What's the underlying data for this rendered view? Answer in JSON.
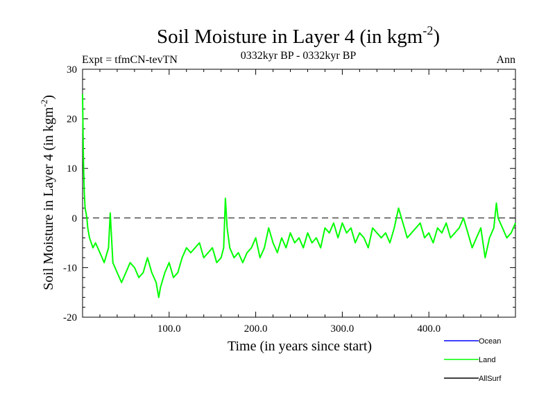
{
  "chart_data": {
    "type": "line",
    "title_main": "Soil Moisture in Layer 4 (in kgm",
    "title_sup": "-2",
    "title_close": ")",
    "subtitle_left": "Expt = tfmCN-tevTN",
    "subtitle_center": "0332kyr BP - 0332kyr BP",
    "subtitle_right": "Ann",
    "xlabel": "Time (in years since start)",
    "ylabel_main": "Soil Moisture in Layer 4 (in kgm",
    "ylabel_sup": "-2",
    "ylabel_close": ")",
    "xlim": [
      0,
      500
    ],
    "ylim": [
      -20,
      30
    ],
    "x_ticks": [
      100,
      200,
      300,
      400
    ],
    "x_tick_labels": [
      "100.0",
      "200.0",
      "300.0",
      "400.0"
    ],
    "y_ticks": [
      -20,
      -10,
      0,
      10,
      20,
      30
    ],
    "y_tick_labels": [
      "-20",
      "-10",
      "0",
      "10",
      "20",
      "30"
    ],
    "reference_line_y": 0,
    "legend": [
      {
        "name": "Ocean",
        "color": "#0000ff"
      },
      {
        "name": "Land",
        "color": "#00ff00"
      },
      {
        "name": "AllSurf",
        "color": "#000000"
      }
    ],
    "series": [
      {
        "name": "Land",
        "color": "#00ff00",
        "x": [
          0,
          1,
          2,
          3,
          4,
          5,
          6,
          8,
          10,
          12,
          15,
          20,
          25,
          30,
          32,
          35,
          40,
          45,
          50,
          55,
          60,
          65,
          70,
          75,
          80,
          85,
          88,
          90,
          95,
          100,
          105,
          110,
          115,
          120,
          125,
          130,
          135,
          140,
          145,
          150,
          155,
          160,
          163,
          165,
          167,
          170,
          175,
          180,
          185,
          190,
          195,
          200,
          205,
          210,
          215,
          220,
          225,
          230,
          235,
          240,
          245,
          250,
          255,
          260,
          265,
          270,
          275,
          280,
          285,
          290,
          295,
          300,
          305,
          310,
          315,
          320,
          325,
          330,
          335,
          340,
          345,
          350,
          355,
          360,
          365,
          370,
          375,
          380,
          385,
          390,
          395,
          400,
          405,
          410,
          415,
          420,
          425,
          430,
          435,
          440,
          445,
          450,
          455,
          460,
          465,
          470,
          475,
          478,
          480,
          485,
          490,
          495,
          500
        ],
        "y": [
          25,
          12,
          5,
          2,
          1,
          0,
          -2,
          -4,
          -5,
          -6,
          -5,
          -7,
          -9,
          -6,
          1,
          -9,
          -11,
          -13,
          -11,
          -9,
          -10,
          -12,
          -11,
          -8,
          -11,
          -13,
          -16,
          -14,
          -11,
          -9,
          -12,
          -11,
          -8,
          -6,
          -7,
          -6,
          -5,
          -8,
          -7,
          -6,
          -9,
          -8,
          -6,
          4,
          -2,
          -6,
          -8,
          -7,
          -9,
          -7,
          -6,
          -4,
          -8,
          -6,
          -2,
          -5,
          -7,
          -4,
          -6,
          -3,
          -5,
          -4,
          -6,
          -3,
          -5,
          -4,
          -6,
          -2,
          -3,
          -1,
          -4,
          -1,
          -3,
          -2,
          -5,
          -3,
          -4,
          -6,
          -2,
          -3,
          -4,
          -3,
          -5,
          -2,
          2,
          -1,
          -4,
          -3,
          -2,
          -1,
          -4,
          -3,
          -5,
          -2,
          -3,
          -1,
          -4,
          -3,
          -2,
          0,
          -3,
          -6,
          -4,
          -2,
          -8,
          -4,
          -2,
          3,
          0,
          -2,
          -4,
          -3,
          -1
        ]
      }
    ]
  }
}
